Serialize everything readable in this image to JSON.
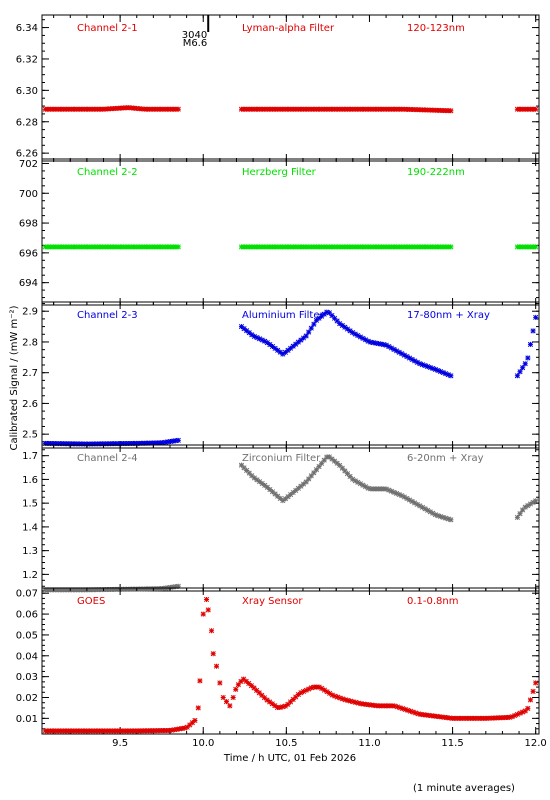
{
  "figure": {
    "ylabel": "Calibrated Signal / (mW m⁻²)",
    "xlabel": "Time / h UTC, 01 Feb 2026",
    "footnote": "(1 minute averages)",
    "flare_marker": {
      "line1": "3040",
      "line2": "M6.6"
    }
  },
  "chart_data": [
    {
      "type": "scatter",
      "panel": "Channel 2-1",
      "filter": "Lyman-alpha Filter",
      "band": "120-123nm",
      "color": "#e00000",
      "ylim": [
        6.255,
        6.348
      ],
      "yticks": [
        6.26,
        6.28,
        6.3,
        6.32,
        6.34
      ],
      "ytick_labels": [
        "6.26",
        "6.28",
        "6.30",
        "6.32",
        "6.34"
      ],
      "segments": [
        {
          "x": [
            9.05,
            9.4,
            9.55,
            9.65,
            9.85
          ],
          "y": [
            6.288,
            6.288,
            6.289,
            6.288,
            6.288
          ]
        },
        {
          "x": [
            10.23,
            10.8,
            11.2,
            11.49
          ],
          "y": [
            6.288,
            6.288,
            6.288,
            6.287
          ]
        },
        {
          "x": [
            11.89,
            12.0
          ],
          "y": [
            6.288,
            6.288
          ]
        }
      ]
    },
    {
      "type": "scatter",
      "panel": "Channel 2-2",
      "filter": "Herzberg Filter",
      "band": "190-222nm",
      "color": "#00e000",
      "ylim": [
        692.5,
        702.3
      ],
      "yticks": [
        694,
        696,
        698,
        700,
        702
      ],
      "ytick_labels": [
        "694",
        "696",
        "698",
        "700",
        "702"
      ],
      "segments": [
        {
          "x": [
            9.05,
            9.85
          ],
          "y": [
            696.4,
            696.4
          ]
        },
        {
          "x": [
            10.23,
            11.49
          ],
          "y": [
            696.4,
            696.4
          ]
        },
        {
          "x": [
            11.89,
            12.0
          ],
          "y": [
            696.4,
            696.4
          ]
        }
      ]
    },
    {
      "type": "scatter",
      "panel": "Channel 2-3",
      "filter": "Aluminium Filter",
      "band": "17-80nm + Xray",
      "color": "#0000e0",
      "ylim": [
        2.455,
        2.93
      ],
      "yticks": [
        2.5,
        2.6,
        2.7,
        2.8,
        2.9
      ],
      "ytick_labels": [
        "2.5",
        "2.6",
        "2.7",
        "2.8",
        "2.9"
      ],
      "segments": [
        {
          "x": [
            9.05,
            9.3,
            9.6,
            9.75,
            9.85
          ],
          "y": [
            2.47,
            2.468,
            2.47,
            2.472,
            2.48
          ]
        },
        {
          "x": [
            10.23,
            10.3,
            10.38,
            10.48,
            10.55,
            10.62,
            10.68,
            10.75,
            10.82,
            10.9,
            11.0,
            11.1,
            11.2,
            11.3,
            11.4,
            11.49
          ],
          "y": [
            2.85,
            2.82,
            2.8,
            2.76,
            2.79,
            2.82,
            2.87,
            2.9,
            2.86,
            2.83,
            2.8,
            2.79,
            2.76,
            2.73,
            2.71,
            2.69
          ]
        },
        {
          "x": [
            11.89,
            11.95,
            12.0
          ],
          "y": [
            2.69,
            2.74,
            2.88
          ]
        }
      ]
    },
    {
      "type": "scatter",
      "panel": "Channel 2-4",
      "filter": "Zirconium Filter",
      "band": "6-20nm + Xray",
      "color": "#707070",
      "ylim": [
        1.13,
        1.745
      ],
      "yticks": [
        1.2,
        1.3,
        1.4,
        1.5,
        1.6,
        1.7
      ],
      "ytick_labels": [
        "1.2",
        "1.3",
        "1.4",
        "1.5",
        "1.6",
        "1.7"
      ],
      "segments": [
        {
          "x": [
            9.05,
            9.3,
            9.6,
            9.75,
            9.85
          ],
          "y": [
            1.135,
            1.135,
            1.138,
            1.14,
            1.15
          ]
        },
        {
          "x": [
            10.23,
            10.3,
            10.38,
            10.48,
            10.55,
            10.62,
            10.68,
            10.75,
            10.82,
            10.9,
            11.0,
            11.1,
            11.2,
            11.3,
            11.4,
            11.49
          ],
          "y": [
            1.66,
            1.61,
            1.57,
            1.51,
            1.55,
            1.59,
            1.64,
            1.7,
            1.66,
            1.6,
            1.56,
            1.56,
            1.53,
            1.49,
            1.45,
            1.43
          ]
        },
        {
          "x": [
            11.89,
            11.93,
            12.0
          ],
          "y": [
            1.44,
            1.48,
            1.51
          ]
        }
      ]
    },
    {
      "type": "scatter",
      "panel": "GOES",
      "filter": "Xray Sensor",
      "band": "0.1-0.8nm",
      "color": "#e00000",
      "xlim": [
        9.03,
        12.02
      ],
      "xticks": [
        9.5,
        10.0,
        10.5,
        11.0,
        11.5,
        12.0
      ],
      "xtick_labels": [
        "9.5",
        "10.0",
        "10.5",
        "11.0",
        "11.5",
        "12.0"
      ],
      "ylim": [
        0.0025,
        0.0725
      ],
      "yticks": [
        0.01,
        0.02,
        0.03,
        0.04,
        0.05,
        0.06,
        0.07
      ],
      "ytick_labels": [
        "0.01",
        "0.02",
        "0.03",
        "0.04",
        "0.05",
        "0.06",
        "0.07"
      ],
      "line_segments": [
        {
          "x": [
            9.05,
            9.3,
            9.6,
            9.8,
            9.9,
            9.95
          ],
          "y": [
            0.004,
            0.004,
            0.004,
            0.0042,
            0.0055,
            0.009
          ]
        },
        {
          "x": [
            10.18,
            10.2,
            10.24,
            10.3,
            10.38,
            10.45,
            10.5,
            10.58,
            10.66,
            10.7,
            10.78,
            10.85,
            10.95,
            11.05,
            11.15,
            11.3,
            11.5,
            11.7,
            11.85,
            11.95,
            12.0
          ],
          "y": [
            0.02,
            0.025,
            0.029,
            0.025,
            0.019,
            0.015,
            0.016,
            0.022,
            0.025,
            0.025,
            0.021,
            0.019,
            0.017,
            0.016,
            0.016,
            0.012,
            0.01,
            0.01,
            0.0105,
            0.014,
            0.027
          ]
        }
      ],
      "scattered_points": {
        "x": [
          9.97,
          9.98,
          10.0,
          10.02,
          10.03,
          10.05,
          10.06,
          10.08,
          10.1,
          10.12,
          10.14,
          10.16
        ],
        "y": [
          0.015,
          0.028,
          0.06,
          0.067,
          0.062,
          0.052,
          0.041,
          0.035,
          0.027,
          0.02,
          0.018,
          0.016
        ]
      },
      "flare_marker_x": 10.03
    }
  ]
}
